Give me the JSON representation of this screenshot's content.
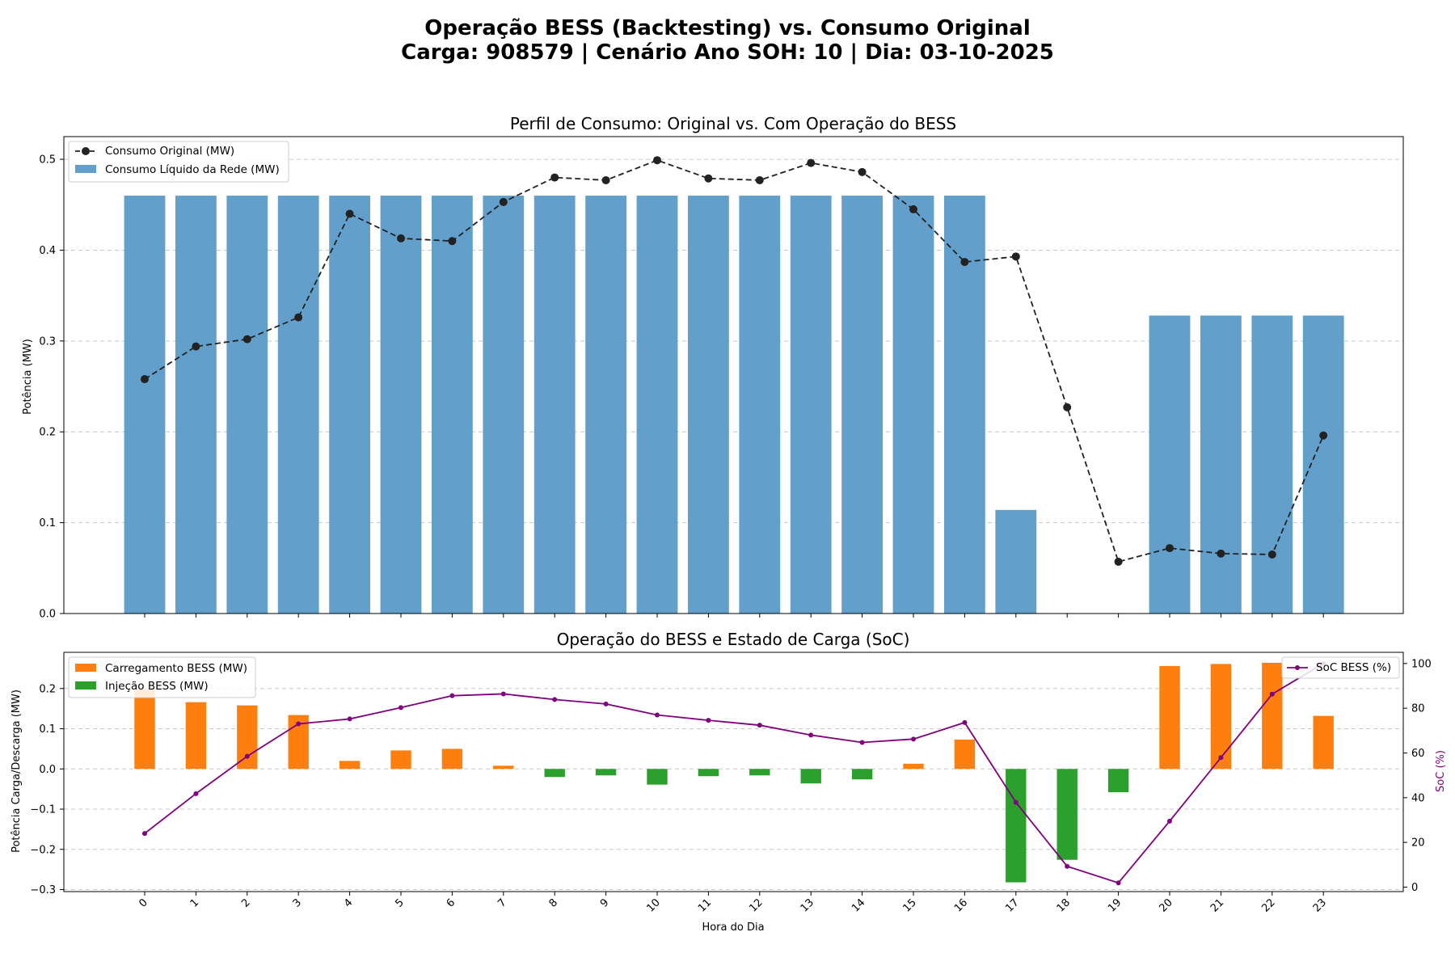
{
  "figure": {
    "title_line1": "Operação BESS (Backtesting) vs. Consumo Original",
    "title_line2": "Carga: 908579 | Cenário Ano SOH: 10 | Dia: 03-10-2025"
  },
  "chart_data": [
    {
      "type": "bar",
      "title": "Perfil de Consumo: Original vs. Com Operação do BESS",
      "xlabel": "",
      "ylabel": "Potência (MW)",
      "ylim": [
        0,
        0.525
      ],
      "yticks": [
        "0.0",
        "0.1",
        "0.2",
        "0.3",
        "0.4",
        "0.5"
      ],
      "grid": "y-dashed",
      "legend_position": "top-left",
      "categories": [
        0,
        1,
        2,
        3,
        4,
        5,
        6,
        7,
        8,
        9,
        10,
        11,
        12,
        13,
        14,
        15,
        16,
        17,
        18,
        19,
        20,
        21,
        22,
        23
      ],
      "series": [
        {
          "name": "Consumo Original (MW)",
          "kind": "line",
          "style": "dashed-with-markers",
          "color": "#222222",
          "values": [
            0.258,
            0.294,
            0.302,
            0.326,
            0.44,
            0.413,
            0.41,
            0.453,
            0.48,
            0.477,
            0.499,
            0.479,
            0.477,
            0.496,
            0.486,
            0.445,
            0.387,
            0.393,
            0.227,
            0.057,
            0.072,
            0.066,
            0.065,
            0.196
          ]
        },
        {
          "name": "Consumo Líquido da Rede (MW)",
          "kind": "bar",
          "color": "#629fca",
          "values": [
            0.46,
            0.46,
            0.46,
            0.46,
            0.46,
            0.46,
            0.46,
            0.46,
            0.46,
            0.46,
            0.46,
            0.46,
            0.46,
            0.46,
            0.46,
            0.46,
            0.46,
            0.114,
            0,
            0,
            0.328,
            0.328,
            0.328,
            0.328
          ]
        }
      ]
    },
    {
      "type": "bar",
      "title": "Operação do BESS e Estado de Carga (SoC)",
      "xlabel": "Hora do Dia",
      "ylabel": "Potência Carga/Descarga (MW)",
      "ylabel_right": "SoC (%)",
      "ylim": [
        -0.305,
        0.29
      ],
      "ylim_right": [
        -2,
        105
      ],
      "yticks": [
        "−0.3",
        "−0.2",
        "−0.1",
        "0.0",
        "0.1",
        "0.2"
      ],
      "yticks_right": [
        "0",
        "20",
        "40",
        "60",
        "80",
        "100"
      ],
      "grid": "y-dashed",
      "legend_position": "top-left",
      "legend_right_position": "top-right",
      "categories": [
        "0",
        "1",
        "2",
        "3",
        "4",
        "5",
        "6",
        "7",
        "8",
        "9",
        "10",
        "11",
        "12",
        "13",
        "14",
        "15",
        "16",
        "17",
        "18",
        "19",
        "20",
        "21",
        "22",
        "23"
      ],
      "series": [
        {
          "name": "Carregamento BESS (MW)",
          "kind": "bar",
          "color": "#ff7f0e",
          "values": [
            0.198,
            0.166,
            0.158,
            0.134,
            0.02,
            0.046,
            0.05,
            0.008,
            0,
            0,
            0,
            0,
            0,
            0,
            0,
            0.013,
            0.073,
            0,
            0,
            0,
            0.256,
            0.261,
            0.264,
            0.132
          ]
        },
        {
          "name": "Injeção BESS (MW)",
          "kind": "bar",
          "color": "#2ca02c",
          "values": [
            0,
            0,
            0,
            0,
            0,
            0,
            0,
            0,
            -0.02,
            -0.016,
            -0.039,
            -0.018,
            -0.016,
            -0.036,
            -0.026,
            0,
            0,
            -0.282,
            -0.226,
            -0.058,
            0,
            0,
            0,
            0
          ]
        },
        {
          "name": "SoC BESS (%)",
          "kind": "line",
          "axis": "right",
          "color": "#800080",
          "values": [
            24.0,
            41.8,
            58.5,
            73.0,
            75.2,
            80.3,
            85.6,
            86.4,
            83.9,
            81.9,
            77.0,
            74.6,
            72.4,
            68.0,
            64.7,
            66.2,
            73.6,
            37.9,
            9.3,
            1.9,
            29.5,
            57.9,
            86.3,
            100.0
          ]
        }
      ]
    }
  ]
}
